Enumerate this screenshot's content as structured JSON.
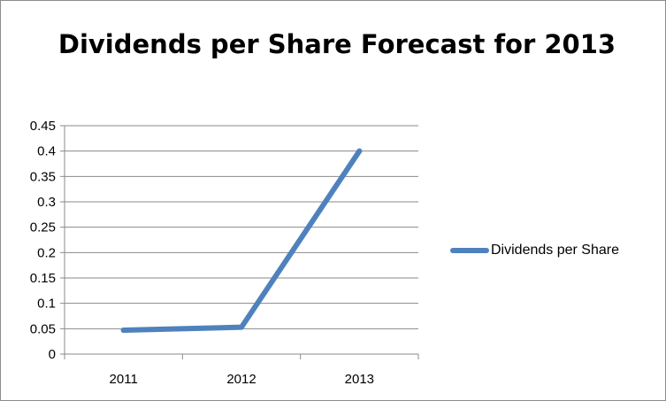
{
  "chart_data": {
    "type": "line",
    "title": "Dividends per Share Forecast for 2013",
    "xlabel": "",
    "ylabel": "",
    "categories": [
      "2011",
      "2012",
      "2013"
    ],
    "series": [
      {
        "name": "Dividends per Share",
        "values": [
          0.047,
          0.053,
          0.4
        ],
        "color": "#4f81bd"
      }
    ],
    "ylim": [
      0,
      0.45
    ],
    "yticks": [
      "0",
      "0.05",
      "0.1",
      "0.15",
      "0.2",
      "0.25",
      "0.3",
      "0.35",
      "0.4",
      "0.45"
    ],
    "grid": true,
    "legend": "right"
  }
}
